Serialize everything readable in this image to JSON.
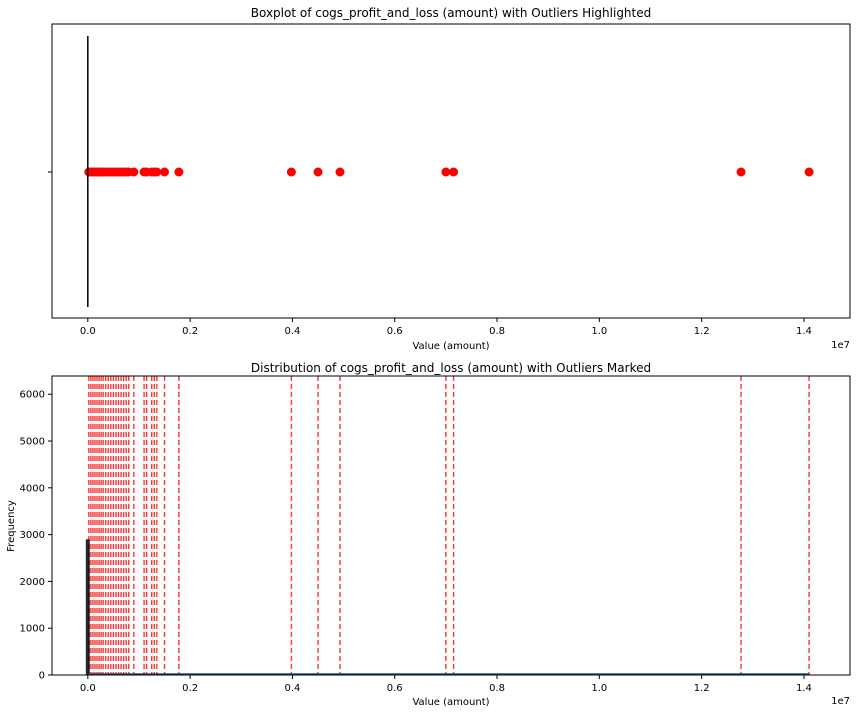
{
  "chart_data": [
    {
      "type": "box",
      "title": "Boxplot of cogs_profit_and_loss (amount) with Outliers Highlighted",
      "xlabel": "Value (amount)",
      "ylabel": "",
      "x_multiplier": "1e7",
      "xlim": [
        -0.07,
        1.49
      ],
      "xticks": [
        0.0,
        0.2,
        0.4,
        0.6,
        0.8,
        1.0,
        1.2,
        1.4
      ],
      "xticklabels": [
        "0.0",
        "0.2",
        "0.4",
        "0.6",
        "0.8",
        "1.0",
        "1.2",
        "1.4"
      ],
      "box": {
        "min": 0.0,
        "q1": 0.0,
        "median": 0.0,
        "q3": 0.0,
        "max": 0.0,
        "whisker_color": "#000000"
      },
      "outliers": [
        0.002,
        0.006,
        0.01,
        0.014,
        0.018,
        0.022,
        0.026,
        0.03,
        0.035,
        0.04,
        0.045,
        0.05,
        0.055,
        0.06,
        0.065,
        0.07,
        0.075,
        0.08,
        0.09,
        0.11,
        0.115,
        0.125,
        0.13,
        0.135,
        0.15,
        0.178,
        0.398,
        0.45,
        0.493,
        0.7,
        0.715,
        1.277,
        1.41
      ],
      "outlier_color": "#ff0000",
      "grid": false
    },
    {
      "type": "histogram",
      "title": "Distribution of cogs_profit_and_loss (amount) with Outliers Marked",
      "xlabel": "Value (amount)",
      "ylabel": "Frequency",
      "x_multiplier": "1e7",
      "xlim": [
        -0.07,
        1.49
      ],
      "ylim": [
        0,
        6390
      ],
      "xticks": [
        0.0,
        0.2,
        0.4,
        0.6,
        0.8,
        1.0,
        1.2,
        1.4
      ],
      "xticklabels": [
        "0.0",
        "0.2",
        "0.4",
        "0.6",
        "0.8",
        "1.0",
        "1.2",
        "1.4"
      ],
      "yticks": [
        0,
        1000,
        2000,
        3000,
        4000,
        5000,
        6000
      ],
      "yticklabels": [
        "0",
        "1000",
        "2000",
        "3000",
        "4000",
        "5000",
        "6000"
      ],
      "outlier_lines": [
        0.002,
        0.006,
        0.01,
        0.014,
        0.018,
        0.022,
        0.026,
        0.03,
        0.035,
        0.04,
        0.045,
        0.05,
        0.055,
        0.06,
        0.065,
        0.07,
        0.075,
        0.08,
        0.09,
        0.11,
        0.115,
        0.125,
        0.13,
        0.135,
        0.15,
        0.178,
        0.398,
        0.45,
        0.493,
        0.7,
        0.715,
        1.277,
        1.41
      ],
      "outlier_line_color": "#ff0000",
      "kde_color": "#1f4e79",
      "grid": false
    }
  ]
}
